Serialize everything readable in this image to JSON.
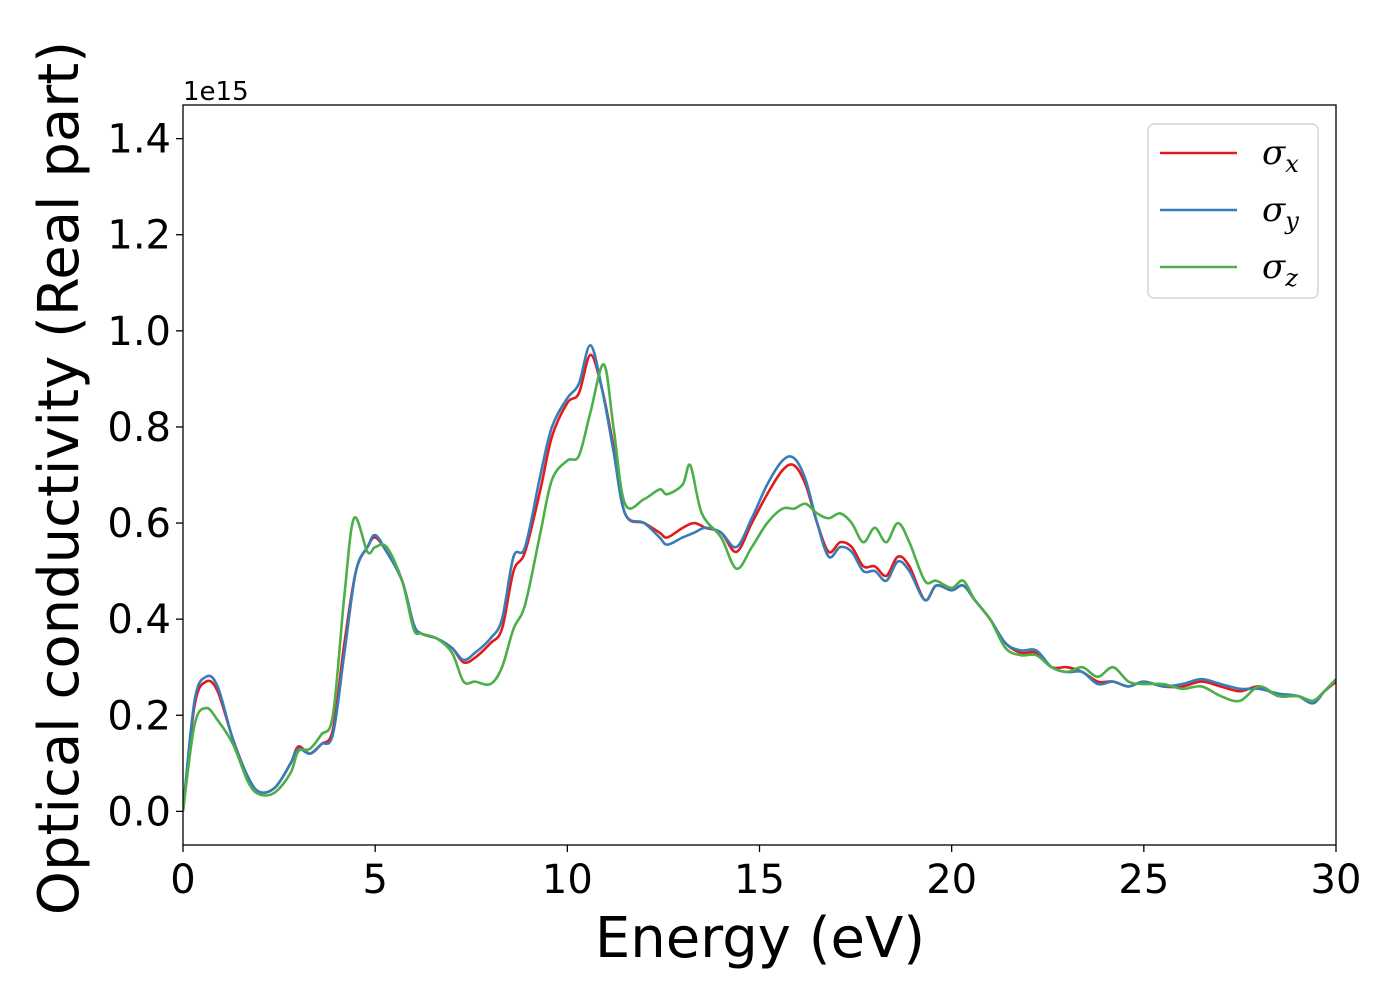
{
  "chart_data": {
    "type": "line",
    "xlabel": "Energy (eV)",
    "ylabel": "Optical conductivity (Real part)",
    "y_offset_label": "1e15",
    "xlim": [
      0,
      30
    ],
    "ylim": [
      -0.07,
      1.47
    ],
    "x_ticks": [
      0,
      5,
      10,
      15,
      20,
      25,
      30
    ],
    "x_tick_labels": [
      "0",
      "5",
      "10",
      "15",
      "20",
      "25",
      "30"
    ],
    "y_ticks": [
      0.0,
      0.2,
      0.4,
      0.6,
      0.8,
      1.0,
      1.2,
      1.4
    ],
    "y_tick_labels": [
      "0.0",
      "0.2",
      "0.4",
      "0.6",
      "0.8",
      "1.0",
      "1.2",
      "1.4"
    ],
    "grid": false,
    "legend_position": "top-right",
    "series": [
      {
        "name": "σx",
        "symbol": "σ",
        "subscript": "x",
        "color": "#e41a1c",
        "points": [
          [
            0,
            0
          ],
          [
            0.3,
            0.22
          ],
          [
            0.6,
            0.27
          ],
          [
            0.9,
            0.25
          ],
          [
            1.3,
            0.15
          ],
          [
            1.7,
            0.07
          ],
          [
            2.0,
            0.04
          ],
          [
            2.4,
            0.05
          ],
          [
            2.8,
            0.1
          ],
          [
            3.0,
            0.135
          ],
          [
            3.3,
            0.12
          ],
          [
            3.6,
            0.14
          ],
          [
            3.9,
            0.17
          ],
          [
            4.2,
            0.35
          ],
          [
            4.5,
            0.5
          ],
          [
            4.8,
            0.55
          ],
          [
            5.0,
            0.57
          ],
          [
            5.3,
            0.54
          ],
          [
            5.7,
            0.48
          ],
          [
            6.0,
            0.39
          ],
          [
            6.2,
            0.37
          ],
          [
            6.6,
            0.36
          ],
          [
            7.0,
            0.34
          ],
          [
            7.3,
            0.31
          ],
          [
            7.6,
            0.32
          ],
          [
            8.0,
            0.35
          ],
          [
            8.3,
            0.38
          ],
          [
            8.6,
            0.5
          ],
          [
            8.9,
            0.54
          ],
          [
            9.3,
            0.67
          ],
          [
            9.6,
            0.78
          ],
          [
            10.0,
            0.85
          ],
          [
            10.3,
            0.87
          ],
          [
            10.6,
            0.95
          ],
          [
            10.9,
            0.88
          ],
          [
            11.2,
            0.76
          ],
          [
            11.5,
            0.62
          ],
          [
            12.0,
            0.6
          ],
          [
            12.4,
            0.58
          ],
          [
            12.6,
            0.57
          ],
          [
            13.0,
            0.59
          ],
          [
            13.3,
            0.6
          ],
          [
            13.6,
            0.59
          ],
          [
            14.0,
            0.58
          ],
          [
            14.4,
            0.54
          ],
          [
            14.8,
            0.6
          ],
          [
            15.2,
            0.66
          ],
          [
            15.6,
            0.71
          ],
          [
            15.9,
            0.72
          ],
          [
            16.2,
            0.68
          ],
          [
            16.5,
            0.6
          ],
          [
            16.8,
            0.54
          ],
          [
            17.1,
            0.56
          ],
          [
            17.4,
            0.55
          ],
          [
            17.7,
            0.51
          ],
          [
            18.0,
            0.51
          ],
          [
            18.3,
            0.49
          ],
          [
            18.6,
            0.53
          ],
          [
            18.9,
            0.51
          ],
          [
            19.3,
            0.44
          ],
          [
            19.6,
            0.47
          ],
          [
            20.0,
            0.46
          ],
          [
            20.3,
            0.47
          ],
          [
            20.6,
            0.44
          ],
          [
            21.0,
            0.4
          ],
          [
            21.4,
            0.35
          ],
          [
            21.8,
            0.33
          ],
          [
            22.2,
            0.33
          ],
          [
            22.6,
            0.3
          ],
          [
            23.0,
            0.3
          ],
          [
            23.4,
            0.29
          ],
          [
            23.8,
            0.27
          ],
          [
            24.2,
            0.27
          ],
          [
            24.6,
            0.26
          ],
          [
            25.0,
            0.27
          ],
          [
            25.5,
            0.26
          ],
          [
            26.0,
            0.26
          ],
          [
            26.5,
            0.27
          ],
          [
            27.0,
            0.26
          ],
          [
            27.5,
            0.25
          ],
          [
            28.0,
            0.26
          ],
          [
            28.5,
            0.24
          ],
          [
            29.0,
            0.24
          ],
          [
            29.4,
            0.23
          ],
          [
            29.7,
            0.25
          ],
          [
            30.0,
            0.27
          ]
        ]
      },
      {
        "name": "σy",
        "symbol": "σ",
        "subscript": "y",
        "color": "#377eb8",
        "points": [
          [
            0,
            0
          ],
          [
            0.3,
            0.23
          ],
          [
            0.6,
            0.28
          ],
          [
            0.9,
            0.26
          ],
          [
            1.3,
            0.15
          ],
          [
            1.7,
            0.07
          ],
          [
            2.0,
            0.04
          ],
          [
            2.4,
            0.05
          ],
          [
            2.8,
            0.1
          ],
          [
            3.0,
            0.13
          ],
          [
            3.3,
            0.12
          ],
          [
            3.6,
            0.14
          ],
          [
            3.9,
            0.16
          ],
          [
            4.2,
            0.33
          ],
          [
            4.5,
            0.5
          ],
          [
            4.8,
            0.55
          ],
          [
            5.0,
            0.575
          ],
          [
            5.3,
            0.54
          ],
          [
            5.7,
            0.48
          ],
          [
            6.0,
            0.39
          ],
          [
            6.2,
            0.37
          ],
          [
            6.6,
            0.36
          ],
          [
            7.0,
            0.34
          ],
          [
            7.3,
            0.315
          ],
          [
            7.6,
            0.33
          ],
          [
            8.0,
            0.36
          ],
          [
            8.3,
            0.4
          ],
          [
            8.6,
            0.53
          ],
          [
            8.9,
            0.55
          ],
          [
            9.3,
            0.7
          ],
          [
            9.6,
            0.8
          ],
          [
            10.0,
            0.86
          ],
          [
            10.3,
            0.89
          ],
          [
            10.6,
            0.97
          ],
          [
            10.9,
            0.88
          ],
          [
            11.2,
            0.75
          ],
          [
            11.5,
            0.62
          ],
          [
            12.0,
            0.6
          ],
          [
            12.4,
            0.57
          ],
          [
            12.6,
            0.555
          ],
          [
            13.0,
            0.57
          ],
          [
            13.3,
            0.58
          ],
          [
            13.6,
            0.59
          ],
          [
            14.0,
            0.58
          ],
          [
            14.4,
            0.55
          ],
          [
            14.8,
            0.61
          ],
          [
            15.2,
            0.68
          ],
          [
            15.6,
            0.73
          ],
          [
            15.9,
            0.735
          ],
          [
            16.2,
            0.69
          ],
          [
            16.5,
            0.6
          ],
          [
            16.8,
            0.53
          ],
          [
            17.1,
            0.55
          ],
          [
            17.4,
            0.54
          ],
          [
            17.7,
            0.5
          ],
          [
            18.0,
            0.5
          ],
          [
            18.3,
            0.48
          ],
          [
            18.6,
            0.52
          ],
          [
            18.9,
            0.5
          ],
          [
            19.3,
            0.44
          ],
          [
            19.6,
            0.47
          ],
          [
            20.0,
            0.46
          ],
          [
            20.3,
            0.47
          ],
          [
            20.6,
            0.44
          ],
          [
            21.0,
            0.4
          ],
          [
            21.4,
            0.35
          ],
          [
            21.8,
            0.335
          ],
          [
            22.2,
            0.335
          ],
          [
            22.6,
            0.3
          ],
          [
            23.0,
            0.29
          ],
          [
            23.4,
            0.29
          ],
          [
            23.8,
            0.265
          ],
          [
            24.2,
            0.27
          ],
          [
            24.6,
            0.26
          ],
          [
            25.0,
            0.27
          ],
          [
            25.5,
            0.26
          ],
          [
            26.0,
            0.265
          ],
          [
            26.5,
            0.275
          ],
          [
            27.0,
            0.265
          ],
          [
            27.5,
            0.255
          ],
          [
            28.0,
            0.255
          ],
          [
            28.5,
            0.245
          ],
          [
            29.0,
            0.24
          ],
          [
            29.4,
            0.225
          ],
          [
            29.7,
            0.25
          ],
          [
            30.0,
            0.275
          ]
        ]
      },
      {
        "name": "σz",
        "symbol": "σ",
        "subscript": "z",
        "color": "#4daf4a",
        "points": [
          [
            0,
            0
          ],
          [
            0.3,
            0.18
          ],
          [
            0.6,
            0.215
          ],
          [
            0.9,
            0.19
          ],
          [
            1.3,
            0.14
          ],
          [
            1.7,
            0.06
          ],
          [
            2.0,
            0.035
          ],
          [
            2.4,
            0.04
          ],
          [
            2.8,
            0.08
          ],
          [
            3.0,
            0.125
          ],
          [
            3.3,
            0.13
          ],
          [
            3.6,
            0.16
          ],
          [
            3.9,
            0.2
          ],
          [
            4.2,
            0.45
          ],
          [
            4.45,
            0.61
          ],
          [
            4.8,
            0.54
          ],
          [
            5.0,
            0.55
          ],
          [
            5.3,
            0.55
          ],
          [
            5.7,
            0.48
          ],
          [
            6.0,
            0.38
          ],
          [
            6.2,
            0.37
          ],
          [
            6.6,
            0.36
          ],
          [
            7.0,
            0.33
          ],
          [
            7.3,
            0.27
          ],
          [
            7.6,
            0.27
          ],
          [
            8.0,
            0.265
          ],
          [
            8.3,
            0.3
          ],
          [
            8.6,
            0.38
          ],
          [
            8.9,
            0.43
          ],
          [
            9.3,
            0.58
          ],
          [
            9.6,
            0.69
          ],
          [
            10.0,
            0.73
          ],
          [
            10.3,
            0.74
          ],
          [
            10.6,
            0.83
          ],
          [
            10.95,
            0.93
          ],
          [
            11.2,
            0.8
          ],
          [
            11.5,
            0.64
          ],
          [
            12.0,
            0.65
          ],
          [
            12.4,
            0.67
          ],
          [
            12.6,
            0.66
          ],
          [
            13.0,
            0.68
          ],
          [
            13.2,
            0.72
          ],
          [
            13.5,
            0.62
          ],
          [
            14.0,
            0.57
          ],
          [
            14.4,
            0.505
          ],
          [
            14.8,
            0.55
          ],
          [
            15.2,
            0.6
          ],
          [
            15.6,
            0.63
          ],
          [
            15.9,
            0.63
          ],
          [
            16.2,
            0.64
          ],
          [
            16.5,
            0.62
          ],
          [
            16.8,
            0.61
          ],
          [
            17.1,
            0.62
          ],
          [
            17.4,
            0.6
          ],
          [
            17.7,
            0.56
          ],
          [
            18.0,
            0.59
          ],
          [
            18.3,
            0.56
          ],
          [
            18.6,
            0.6
          ],
          [
            18.9,
            0.56
          ],
          [
            19.3,
            0.48
          ],
          [
            19.6,
            0.48
          ],
          [
            20.0,
            0.465
          ],
          [
            20.3,
            0.48
          ],
          [
            20.6,
            0.44
          ],
          [
            21.0,
            0.4
          ],
          [
            21.4,
            0.34
          ],
          [
            21.8,
            0.325
          ],
          [
            22.2,
            0.325
          ],
          [
            22.6,
            0.3
          ],
          [
            23.0,
            0.29
          ],
          [
            23.4,
            0.3
          ],
          [
            23.8,
            0.28
          ],
          [
            24.2,
            0.3
          ],
          [
            24.6,
            0.27
          ],
          [
            25.0,
            0.265
          ],
          [
            25.5,
            0.265
          ],
          [
            26.0,
            0.255
          ],
          [
            26.5,
            0.26
          ],
          [
            27.0,
            0.24
          ],
          [
            27.5,
            0.23
          ],
          [
            28.0,
            0.26
          ],
          [
            28.5,
            0.24
          ],
          [
            29.0,
            0.24
          ],
          [
            29.4,
            0.23
          ],
          [
            29.7,
            0.25
          ],
          [
            30.0,
            0.275
          ]
        ]
      }
    ]
  }
}
